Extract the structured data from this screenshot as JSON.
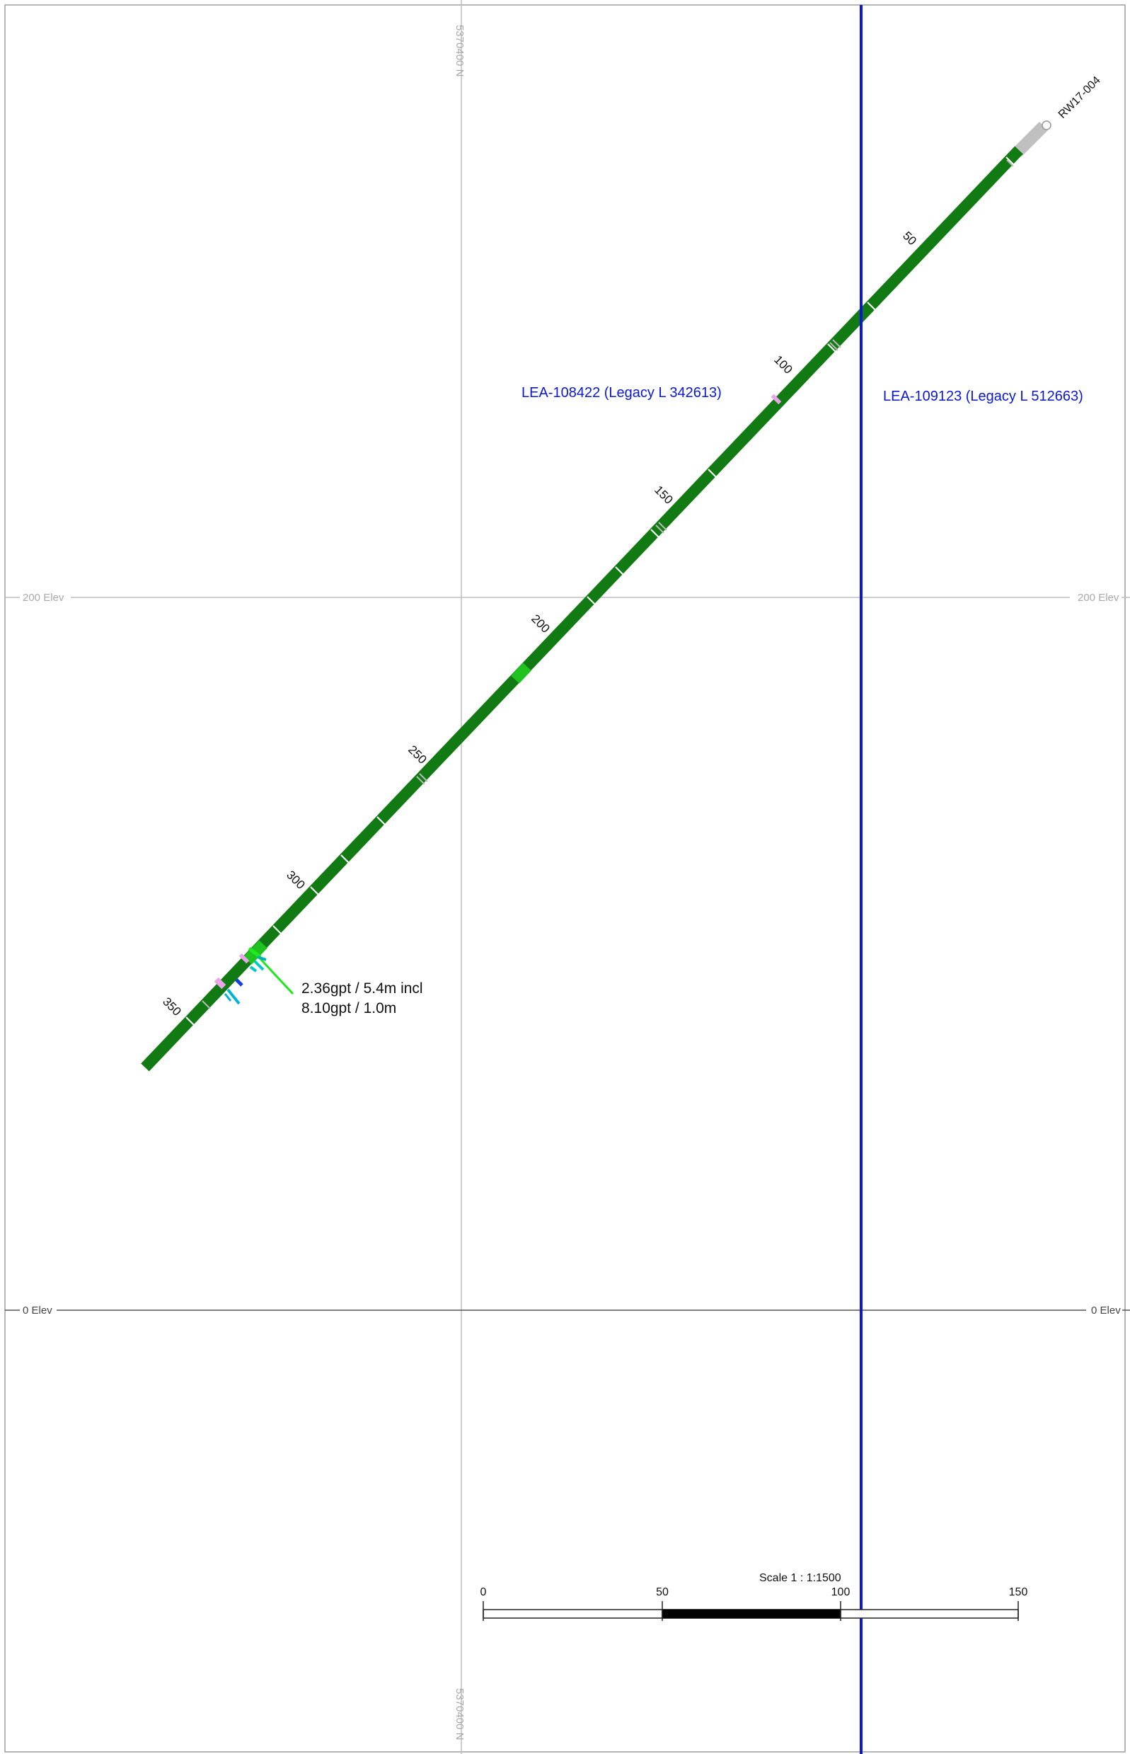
{
  "grid": {
    "northing_label": "5370400 N",
    "elev_labels": [
      "200 Elev",
      "0 Elev"
    ]
  },
  "claims": {
    "left": "LEA-108422 (Legacy L 342613)",
    "right": "LEA-109123 (Legacy L 512663)",
    "boundary_color": "#0a18d6"
  },
  "drill_hole": {
    "name": "RW17-004",
    "trace_color": "#127a12",
    "collar_color": "#c0c0c0",
    "depth_labels": [
      "50",
      "100",
      "150",
      "200",
      "250",
      "300",
      "350"
    ]
  },
  "assay": {
    "line1": "2.36gpt / 5.4m incl",
    "line2": "8.10gpt / 1.0m"
  },
  "scale": {
    "title": "Scale 1 : 1:1500",
    "ticks": [
      "0",
      "50",
      "100",
      "150"
    ]
  }
}
